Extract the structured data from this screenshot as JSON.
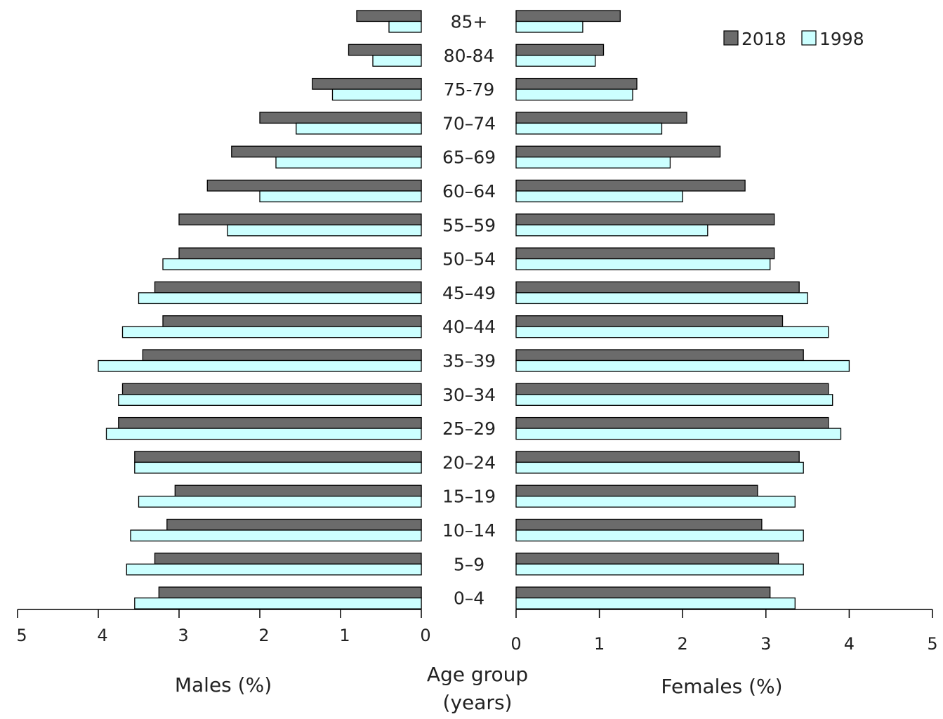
{
  "chart_data": {
    "type": "bar",
    "subtype": "population-pyramid",
    "colors": {
      "2018": "#6b6b6b",
      "1998": "#ccffff",
      "outline": "#000000"
    },
    "categories": [
      "85+",
      "80-84",
      "75-79",
      "70-74",
      "65-69",
      "60-64",
      "55-59",
      "50-54",
      "45-49",
      "40-44",
      "35-39",
      "30-34",
      "25-29",
      "20-24",
      "15-19",
      "10-14",
      "5-9",
      "0-4"
    ],
    "category_labels": [
      "85+",
      "80-84",
      "75-79",
      "70–74",
      "65–69",
      "60–64",
      "55–59",
      "50–54",
      "45–49",
      "40–44",
      "35–39",
      "30–34",
      "25–29",
      "20–24",
      "15–19",
      "10–14",
      "5–9",
      "0–4"
    ],
    "males": {
      "xlabel": "Males (%)",
      "xlim": [
        0,
        5
      ],
      "ticks": [
        "5",
        "4",
        "3",
        "2",
        "1",
        "0"
      ],
      "series": [
        {
          "name": "2018",
          "values": [
            0.8,
            0.9,
            1.35,
            2.0,
            2.35,
            2.65,
            3.0,
            3.0,
            3.3,
            3.2,
            3.45,
            3.7,
            3.75,
            3.55,
            3.05,
            3.15,
            3.3,
            3.25
          ]
        },
        {
          "name": "1998",
          "values": [
            0.4,
            0.6,
            1.1,
            1.55,
            1.8,
            2.0,
            2.4,
            3.2,
            3.5,
            3.7,
            4.0,
            3.75,
            3.9,
            3.55,
            3.5,
            3.6,
            3.65,
            3.55
          ]
        }
      ]
    },
    "females": {
      "xlabel": "Females (%)",
      "xlim": [
        0,
        5
      ],
      "ticks": [
        "0",
        "1",
        "2",
        "3",
        "4",
        "5"
      ],
      "series": [
        {
          "name": "2018",
          "values": [
            1.25,
            1.05,
            1.45,
            2.05,
            2.45,
            2.75,
            3.1,
            3.1,
            3.4,
            3.2,
            3.45,
            3.75,
            3.75,
            3.4,
            2.9,
            2.95,
            3.15,
            3.05
          ]
        },
        {
          "name": "1998",
          "values": [
            0.8,
            0.95,
            1.4,
            1.75,
            1.85,
            2.0,
            2.3,
            3.05,
            3.5,
            3.75,
            4.0,
            3.8,
            3.9,
            3.45,
            3.35,
            3.45,
            3.45,
            3.35
          ]
        }
      ]
    },
    "center_label_line1": "Age group",
    "center_label_line2": "(years)",
    "legend": {
      "placement": "top-right",
      "items": [
        "2018",
        "1998"
      ]
    },
    "grid": false
  }
}
